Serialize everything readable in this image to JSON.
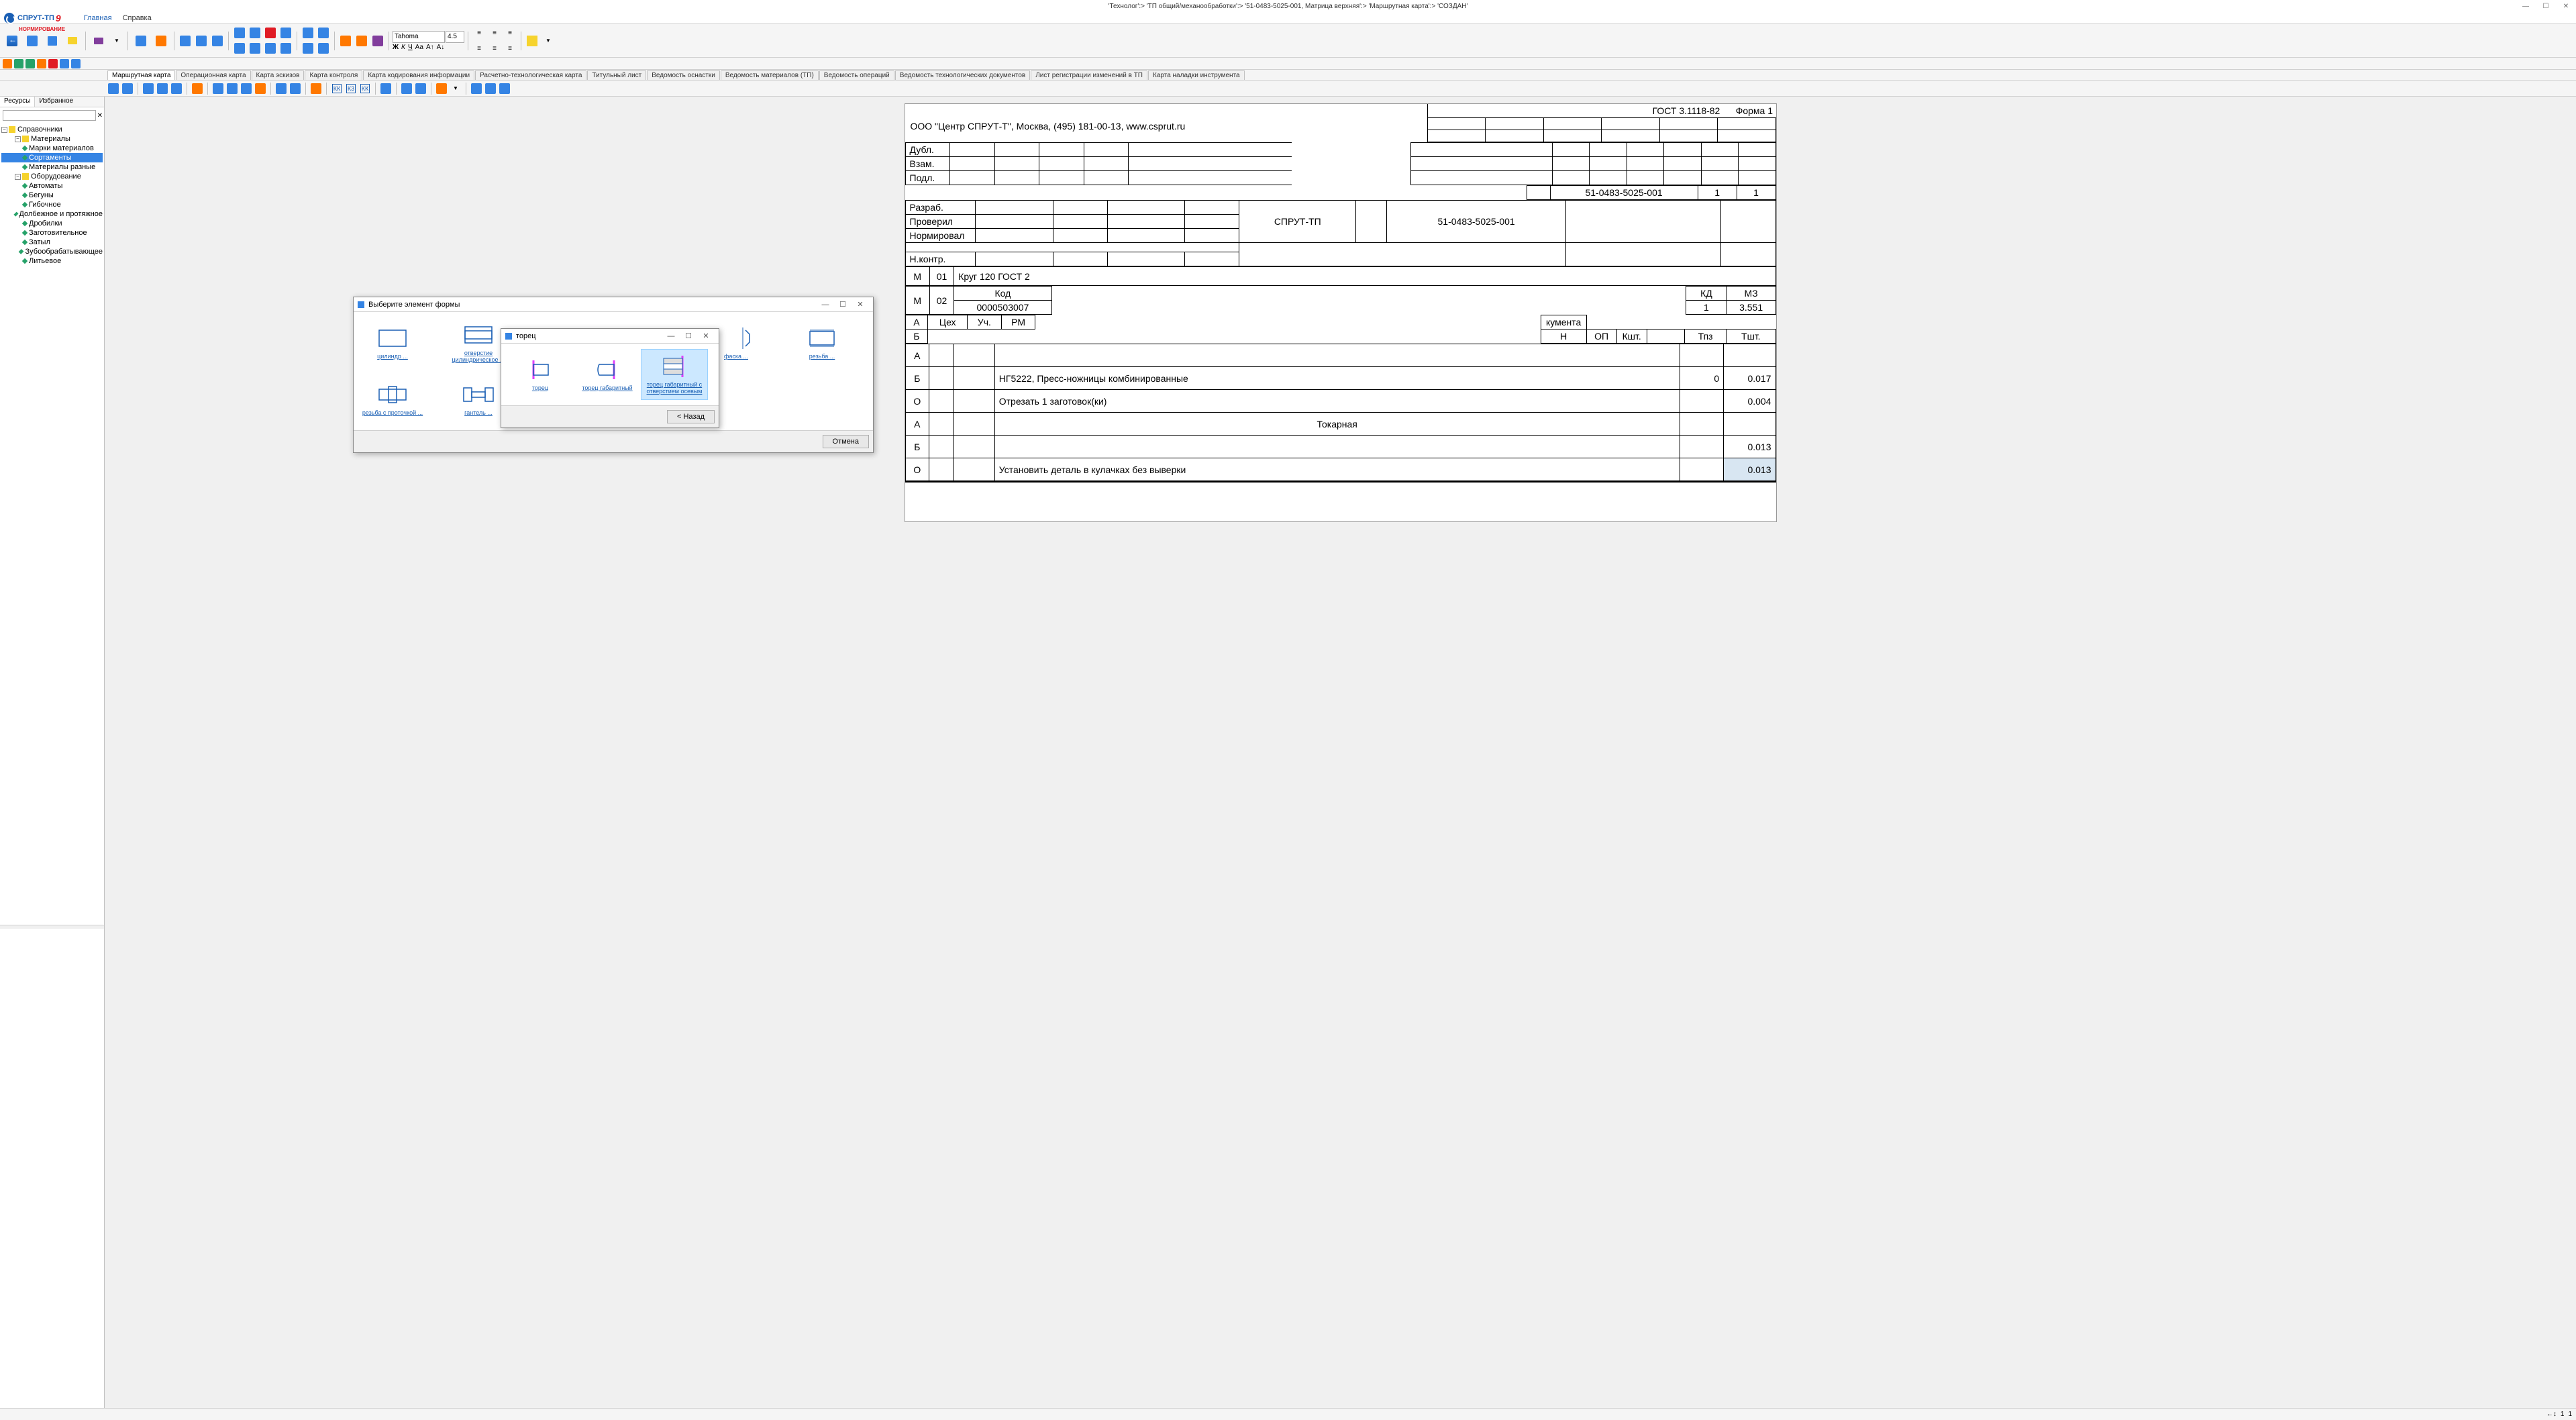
{
  "window": {
    "title": "'Технолог':> 'ТП общий/механообработки':> '51-0483-5025-001, Матрица верхняя':> 'Маршрутная карта':> 'СОЗДАН'",
    "min": "—",
    "max": "☐",
    "close": "✕"
  },
  "logo": {
    "main": "СПРУТ-ТП",
    "sub": "НОРМИРОВАНИЕ",
    "ver": "9"
  },
  "menu": {
    "home": "Главная",
    "help": "Справка"
  },
  "font": {
    "name": "Tahoma",
    "size": "4.5"
  },
  "sidebar": {
    "tab_resources": "Ресурсы",
    "tab_favorites": "Избранное",
    "root": "Справочники",
    "nodes": [
      {
        "label": "Материалы",
        "level": 1,
        "expanded": true,
        "folder": true
      },
      {
        "label": "Марки материалов",
        "level": 2
      },
      {
        "label": "Сортаменты",
        "level": 2,
        "selected": true
      },
      {
        "label": "Материалы разные",
        "level": 2
      },
      {
        "label": "Оборудование",
        "level": 1,
        "expanded": true,
        "folder": true
      },
      {
        "label": "Автоматы",
        "level": 2
      },
      {
        "label": "Бегуны",
        "level": 2
      },
      {
        "label": "Гибочное",
        "level": 2
      },
      {
        "label": "Долбежное и протяжное",
        "level": 2
      },
      {
        "label": "Дробилки",
        "level": 2
      },
      {
        "label": "Заготовительное",
        "level": 2
      },
      {
        "label": "Затыл",
        "level": 2
      },
      {
        "label": "Зубообрабатывающее",
        "level": 2
      },
      {
        "label": "Литьевое",
        "level": 2
      }
    ]
  },
  "doc_tabs": [
    "Маршрутная карта",
    "Операционная карта",
    "Карта эскизов",
    "Карта контроля",
    "Карта кодирования информации",
    "Расчетно-технологическая карта",
    "Титульный лист",
    "Ведомость оснастки",
    "Ведомость материалов (ТП)",
    "Ведомость операций",
    "Ведомость технологических документов",
    "Лист регистрации изменений в ТП",
    "Карта наладки инструмента"
  ],
  "doc": {
    "gost": "ГОСТ 3.1118-82",
    "form": "Форма 1",
    "company": "ООО \"Центр СПРУТ-Т\", Москва, (495) 181-00-13, www.csprut.ru",
    "labels": {
      "dubl": "Дубл.",
      "vzam": "Взам.",
      "podl": "Подл.",
      "razrab": "Разраб.",
      "proveril": "Проверил",
      "normir": "Нормировал",
      "nkontr": "Н.контр."
    },
    "title_main": "СПРУТ-ТП",
    "part_no": "51-0483-5025-001",
    "sheet_cur": "1",
    "sheet_tot": "1",
    "m01": "Круг 120 ГОСТ 2",
    "headers2": {
      "kod": "Код",
      "kd": "КД",
      "mz": "МЗ"
    },
    "m02_code": "0000503007",
    "m02_kd": "1",
    "m02_mz": "3.551",
    "a_hdr": {
      "tseh": "Цех",
      "uch": "Уч.",
      "rm": "РМ",
      "documents": "кумента",
      "n": "Н",
      "op": "ОП",
      "ksht": "Кшт.",
      "tpz": "Тпз",
      "tsht": "Тшт."
    },
    "rows": [
      {
        "letter": "А",
        "text": ""
      },
      {
        "letter": "Б",
        "text": "НГ5222, Пресс-ножницы комбинированные",
        "tpz": "0",
        "tsht": "0.017"
      },
      {
        "letter": "О",
        "text": "Отрезать 1 заготовок(ки)",
        "tsht": "0.004"
      },
      {
        "letter": "А",
        "text": "Токарная",
        "center": true
      },
      {
        "letter": "Б",
        "text": "",
        "tsht": "0.013"
      },
      {
        "letter": "О",
        "text": "Установить деталь в кулачках без выверки",
        "tsht": "0.013",
        "hl": true
      }
    ],
    "row_labels": {
      "M": "М",
      "01": "01",
      "02": "02",
      "A": "А",
      "B": "Б",
      "O": "О"
    }
  },
  "dialog1": {
    "title": "Выберите элемент формы",
    "cancel_btn": "Отмена",
    "shapes_row1": [
      {
        "label": "цилиндр ...",
        "kind": "rect"
      },
      {
        "label": "отверстие цилиндрическое ...",
        "kind": "hole"
      },
      {
        "label": "",
        "kind": "top",
        "gray": true
      },
      {
        "label": "",
        "kind": "top2",
        "gray": true
      },
      {
        "label": "фаска ...",
        "kind": "chamfer"
      },
      {
        "label": "резьба ...",
        "kind": "thread"
      }
    ],
    "shapes_row2": [
      {
        "label": "резьба с проточкой ...",
        "kind": "thread2"
      },
      {
        "label": "гантель ...",
        "kind": "dumbbell"
      }
    ]
  },
  "dialog2": {
    "title": "торец",
    "back_btn": "< Назад",
    "shapes": [
      {
        "label": "торец",
        "kind": "face1"
      },
      {
        "label": "торец габаритный",
        "kind": "face2"
      },
      {
        "label": "торец габаритный с отверстием осевым",
        "kind": "face3",
        "selected": true
      }
    ]
  },
  "status": {
    "zoom1": "1",
    "zoom2": "1"
  },
  "colors": {
    "selection": "#3584e4",
    "dialog_sel": "#cce8ff",
    "shape_stroke": "#1a5fb4",
    "shape_magenta": "#e040fb"
  }
}
